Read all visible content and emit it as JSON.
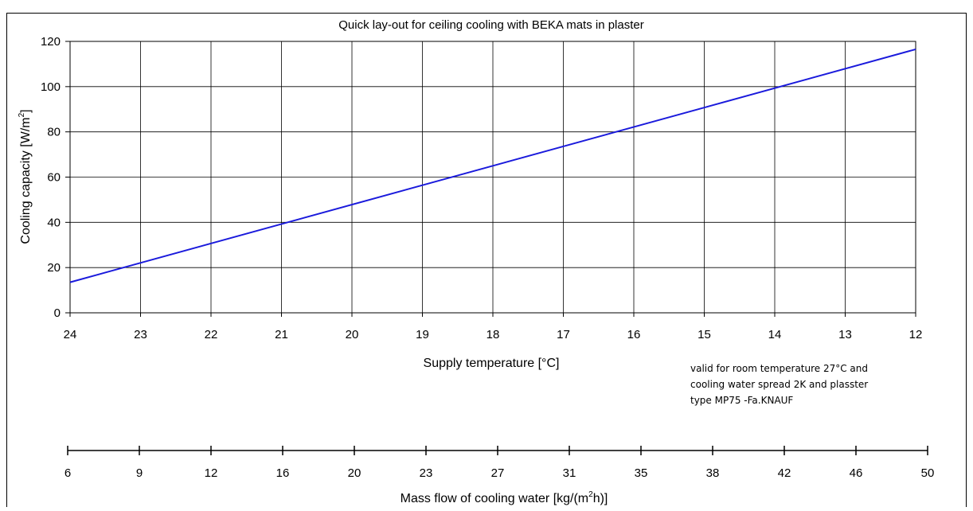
{
  "chart_data": {
    "type": "line",
    "title": "Quick lay-out for ceiling cooling with  BEKA mats in plaster",
    "xlabel": "Supply temperature [°C]",
    "ylabel_main": "Cooling capacity [W/m",
    "ylabel_sup": "2",
    "ylabel_tail": "]",
    "x_ticks": [
      "24",
      "23",
      "22",
      "21",
      "20",
      "19",
      "18",
      "17",
      "16",
      "15",
      "14",
      "13",
      "12"
    ],
    "xlim": [
      24,
      12
    ],
    "y_ticks": [
      "0",
      "20",
      "40",
      "60",
      "80",
      "100",
      "120"
    ],
    "ylim": [
      0,
      120
    ],
    "grid": true,
    "series": [
      {
        "color": "#1a1adc",
        "x": [
          24,
          12
        ],
        "y": [
          13.5,
          116.5
        ]
      }
    ],
    "secondary_axis": {
      "ticks": [
        "6",
        "9",
        "12",
        "16",
        "20",
        "23",
        "27",
        "31",
        "35",
        "38",
        "42",
        "46",
        "50"
      ],
      "label_main": "Mass flow of cooling water [kg/(m",
      "label_sup": "2",
      "label_tail": "h)]"
    },
    "note_lines": [
      "valid for room temperature 27°C  and",
      "cooling water spread 2K and plasster",
      "type MP75 -Fa.KNAUF"
    ]
  }
}
